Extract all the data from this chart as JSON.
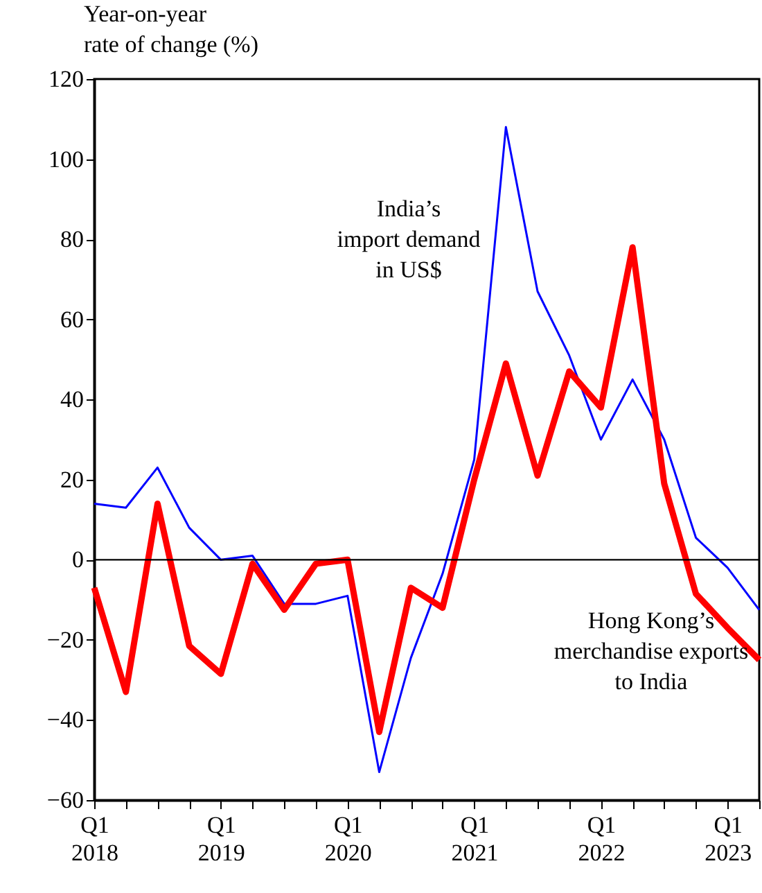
{
  "chart_data": {
    "type": "line",
    "ylabel": "Year-on-year\nrate of change (%)",
    "categories": [
      "Q1 2018",
      null,
      null,
      null,
      "Q1 2019",
      null,
      null,
      null,
      "Q1 2020",
      null,
      null,
      null,
      "Q1 2021",
      null,
      null,
      null,
      "Q1 2022",
      null,
      null,
      null,
      "Q1 2023",
      null
    ],
    "series": [
      {
        "name": "India’s\nimport demand\nin US$",
        "color": "#0000ff",
        "values": [
          14,
          13,
          23,
          8,
          0,
          1,
          -11,
          -11,
          -9,
          -53,
          -24.5,
          -3.5,
          25,
          108,
          67,
          51,
          30,
          45,
          30,
          5.5,
          -2,
          -12.5
        ]
      },
      {
        "name": "Hong Kong’s\nmerchandise exports\nto India",
        "color": "#ff0000",
        "values": [
          -7,
          -33,
          14,
          -21.5,
          -28.5,
          -1,
          -12.5,
          -1,
          0,
          -43,
          -7,
          -12,
          20,
          49,
          21,
          47,
          38,
          78,
          19,
          -8.5,
          -17,
          -25
        ]
      }
    ],
    "ylim": [
      -60,
      120
    ],
    "yticks": [
      -60,
      -40,
      -20,
      0,
      20,
      40,
      60,
      80,
      100,
      120
    ],
    "ref_lines": [
      {
        "axis": "y",
        "value": 0,
        "color": "#000000"
      }
    ],
    "grid": false,
    "marker": "none",
    "line_style": "solid"
  }
}
